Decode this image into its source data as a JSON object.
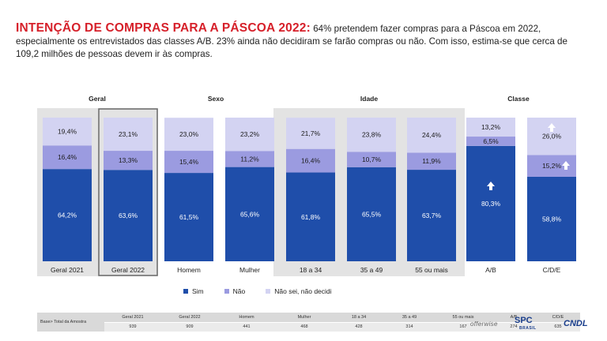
{
  "headline": {
    "title": "INTENÇÃO DE COMPRAS PARA A PÁSCOA 2022:",
    "body": " 64% pretendem fazer compras para a Páscoa em 2022, especialmente os entrevistados das classes A/B. 23% ainda não decidiram se farão compras ou não. Com isso, estima-se que cerca de 109,2 milhões de pessoas devem ir às compras."
  },
  "chart_data": {
    "type": "bar",
    "stacked": true,
    "ylim": [
      0,
      100
    ],
    "groups": [
      "Geral",
      "Sexo",
      "Idade",
      "Classe"
    ],
    "categories": [
      "Geral 2021",
      "Geral 2022",
      "Homem",
      "Mulher",
      "18 a 34",
      "35 a 49",
      "55 ou mais",
      "A/B",
      "C/D/E"
    ],
    "category_group": [
      "Geral",
      "Geral",
      "Sexo",
      "Sexo",
      "Idade",
      "Idade",
      "Idade",
      "Classe",
      "Classe"
    ],
    "series": [
      {
        "name": "Sim",
        "color": "#1f4eaa",
        "values": [
          64.2,
          63.6,
          61.5,
          65.6,
          61.8,
          65.5,
          63.7,
          80.3,
          58.8
        ],
        "labels": [
          "64,2%",
          "63,6%",
          "61,5%",
          "65,6%",
          "61,8%",
          "65,5%",
          "63,7%",
          "80,3%",
          "58,8%"
        ]
      },
      {
        "name": "Não",
        "color": "#9b9be0",
        "values": [
          16.4,
          13.3,
          15.4,
          11.2,
          16.4,
          10.7,
          11.9,
          6.5,
          15.2
        ],
        "labels": [
          "16,4%",
          "13,3%",
          "15,4%",
          "11,2%",
          "16,4%",
          "10,7%",
          "11,9%",
          "6,5%",
          "15,2%"
        ]
      },
      {
        "name": "Não sei, não decidi",
        "color": "#d3d3f2",
        "values": [
          19.4,
          23.1,
          23.0,
          23.2,
          21.7,
          23.8,
          24.4,
          13.2,
          26.0
        ],
        "labels": [
          "19,4%",
          "23,1%",
          "23,0%",
          "23,2%",
          "21,7%",
          "23,8%",
          "24,4%",
          "13,2%",
          "26,0%"
        ]
      }
    ],
    "highlights": [
      "up-arrow Sim A/B",
      "up-arrow Não sei C/D/E",
      "up-arrow Não C/D/E"
    ]
  },
  "legend": [
    {
      "label": "Sim",
      "color": "#1f4eaa"
    },
    {
      "label": "Não",
      "color": "#9b9be0"
    },
    {
      "label": "Não sei, não decidi",
      "color": "#d3d3f2"
    }
  ],
  "base_table": {
    "label": "Base> Total da Amostra",
    "headers": [
      "Geral 2021",
      "Geral 2022",
      "Homem",
      "Mulher",
      "18 a 34",
      "35 a 49",
      "55 ou mais",
      "A/B",
      "C/D/E"
    ],
    "values": [
      "939",
      "909",
      "441",
      "468",
      "428",
      "314",
      "167",
      "274",
      "635"
    ]
  },
  "logos": {
    "offerwise": "offerwise",
    "spc": "SPC",
    "spc_sub": "BRASIL",
    "cndl": "CNDL"
  }
}
